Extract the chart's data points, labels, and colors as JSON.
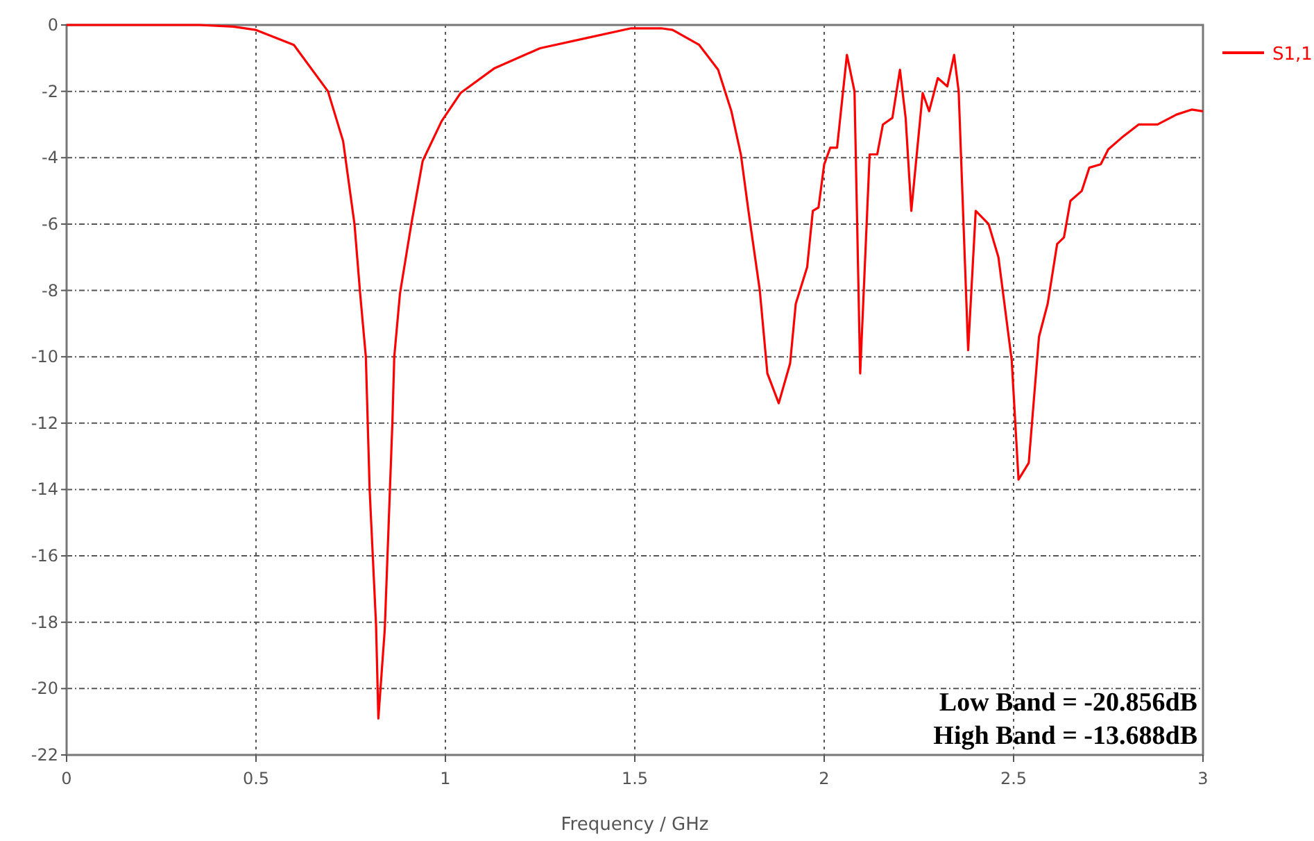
{
  "chart_data": {
    "type": "line",
    "xlabel": "Frequency / GHz",
    "xlim": [
      0,
      3
    ],
    "xticks": [
      0,
      0.5,
      1,
      1.5,
      2,
      2.5,
      3
    ],
    "ylim": [
      -22,
      0
    ],
    "yticks": [
      0,
      -2,
      -4,
      -6,
      -8,
      -10,
      -12,
      -14,
      -16,
      -18,
      -20,
      -22
    ],
    "grid": true,
    "legend": "top right",
    "marker": "none",
    "line_style": "solid",
    "annotations": [
      "Low Band = -20.856dB",
      "High Band = -13.688dB"
    ],
    "series": [
      {
        "name": "S1,1",
        "color": "#ff0000",
        "x": [
          0,
          0.35,
          0.44,
          0.5,
          0.6,
          0.69,
          0.73,
          0.76,
          0.775,
          0.79,
          0.8,
          0.817,
          0.823,
          0.84,
          0.86,
          0.865,
          0.88,
          0.91,
          0.94,
          0.99,
          1.04,
          1.13,
          1.25,
          1.37,
          1.49,
          1.57,
          1.6,
          1.67,
          1.72,
          1.755,
          1.78,
          1.8,
          1.83,
          1.85,
          1.88,
          1.91,
          1.925,
          1.955,
          1.97,
          1.985,
          2.0,
          2.016,
          2.034,
          2.06,
          2.08,
          2.095,
          2.12,
          2.14,
          2.155,
          2.18,
          2.2,
          2.215,
          2.23,
          2.26,
          2.277,
          2.3,
          2.325,
          2.343,
          2.355,
          2.38,
          2.4,
          2.434,
          2.46,
          2.495,
          2.513,
          2.54,
          2.567,
          2.59,
          2.615,
          2.633,
          2.65,
          2.68,
          2.7,
          2.73,
          2.75,
          2.785,
          2.83,
          2.88,
          2.93,
          2.97,
          3.0
        ],
        "values": [
          0,
          0,
          -0.05,
          -0.15,
          -0.6,
          -2,
          -3.5,
          -6,
          -8.1,
          -10,
          -14,
          -18.1,
          -20.9,
          -18.2,
          -12,
          -10,
          -8.1,
          -6,
          -4.1,
          -2.9,
          -2.05,
          -1.3,
          -0.7,
          -0.4,
          -0.1,
          -0.1,
          -0.15,
          -0.6,
          -1.35,
          -2.6,
          -3.9,
          -5.6,
          -8,
          -10.5,
          -11.4,
          -10.2,
          -8.4,
          -7.3,
          -5.6,
          -5.5,
          -4.2,
          -3.7,
          -3.7,
          -0.9,
          -2.0,
          -10.5,
          -3.9,
          -3.9,
          -3.0,
          -2.8,
          -1.35,
          -2.8,
          -5.6,
          -2.05,
          -2.6,
          -1.6,
          -1.85,
          -0.9,
          -2.0,
          -9.8,
          -5.6,
          -6,
          -7,
          -10.1,
          -13.7,
          -13.2,
          -9.4,
          -8.4,
          -6.6,
          -6.4,
          -5.3,
          -5.0,
          -4.3,
          -4.2,
          -3.75,
          -3.4,
          -3.0,
          -3.0,
          -2.7,
          -2.55,
          -2.6
        ]
      }
    ]
  }
}
